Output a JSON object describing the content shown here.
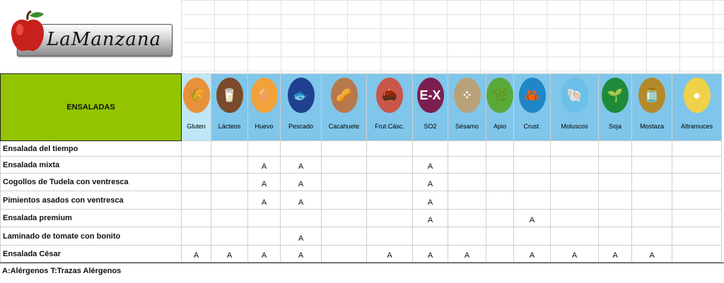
{
  "brand": {
    "logo_text": "LaManzana"
  },
  "section_title": "ENSALADAS",
  "allergens": [
    {
      "label": "Gluten",
      "icon": "wheat-icon",
      "color": "#e8913a",
      "glyph": "🌾"
    },
    {
      "label": "Lácteos",
      "icon": "milk-jug-icon",
      "color": "#7a4a2a",
      "glyph": "🥛"
    },
    {
      "label": "Huevo",
      "icon": "egg-icon",
      "color": "#f1a23a",
      "glyph": "🥚"
    },
    {
      "label": "Pescado",
      "icon": "fish-icon",
      "color": "#1f3f8f",
      "glyph": "🐟"
    },
    {
      "label": "Cacahuete",
      "icon": "peanut-icon",
      "color": "#b7784a",
      "glyph": "🥜"
    },
    {
      "label": "Frut.Cásc.",
      "icon": "nut-icon",
      "color": "#c9564a",
      "glyph": "🌰"
    },
    {
      "label": "SO2",
      "icon": "sulphite-icon",
      "color": "#7a1f4f",
      "glyph": "E-X"
    },
    {
      "label": "Sésamo",
      "icon": "sesame-icon",
      "color": "#b9a27a",
      "glyph": "⁘"
    },
    {
      "label": "Apio",
      "icon": "celery-icon",
      "color": "#5aa83a",
      "glyph": "🌿"
    },
    {
      "label": "Crust.",
      "icon": "crab-icon",
      "color": "#1f86c7",
      "glyph": "🦀"
    },
    {
      "label": "Moluscos",
      "icon": "shell-icon",
      "color": "#6ac0e6",
      "glyph": "🐚"
    },
    {
      "label": "Soja",
      "icon": "soy-icon",
      "color": "#1f8a3a",
      "glyph": "🌱"
    },
    {
      "label": "Mostaza",
      "icon": "mustard-icon",
      "color": "#b38a2a",
      "glyph": "🫙"
    },
    {
      "label": "Altramuces",
      "icon": "lupin-icon",
      "color": "#f0d24a",
      "glyph": "●"
    }
  ],
  "dishes": [
    {
      "name": "Ensalada del tiempo",
      "marks": [
        "",
        "",
        "",
        "",
        "",
        "",
        "",
        "",
        "",
        "",
        "",
        "",
        "",
        ""
      ]
    },
    {
      "name": "Ensalada mixta",
      "marks": [
        "",
        "",
        "A",
        "A",
        "",
        "",
        "A",
        "",
        "",
        "",
        "",
        "",
        "",
        ""
      ]
    },
    {
      "name": "Cogollos de Tudela con ventresca",
      "marks": [
        "",
        "",
        "A",
        "A",
        "",
        "",
        "A",
        "",
        "",
        "",
        "",
        "",
        "",
        ""
      ]
    },
    {
      "name": "Pimientos asados con ventresca",
      "marks": [
        "",
        "",
        "A",
        "A",
        "",
        "",
        "A",
        "",
        "",
        "",
        "",
        "",
        "",
        ""
      ]
    },
    {
      "name": "Ensalada premium",
      "marks": [
        "",
        "",
        "",
        "",
        "",
        "",
        "A",
        "",
        "",
        "A",
        "",
        "",
        "",
        ""
      ]
    },
    {
      "name": "Laminado de tomate con bonito",
      "marks": [
        "",
        "",
        "",
        "A",
        "",
        "",
        "",
        "",
        "",
        "",
        "",
        "",
        "",
        ""
      ]
    },
    {
      "name": "Ensalada César",
      "marks": [
        "A",
        "A",
        "A",
        "A",
        "",
        "A",
        "A",
        "A",
        "",
        "A",
        "A",
        "A",
        "A",
        ""
      ]
    }
  ],
  "legend": "A:Alérgenos T:Trazas Alérgenos"
}
